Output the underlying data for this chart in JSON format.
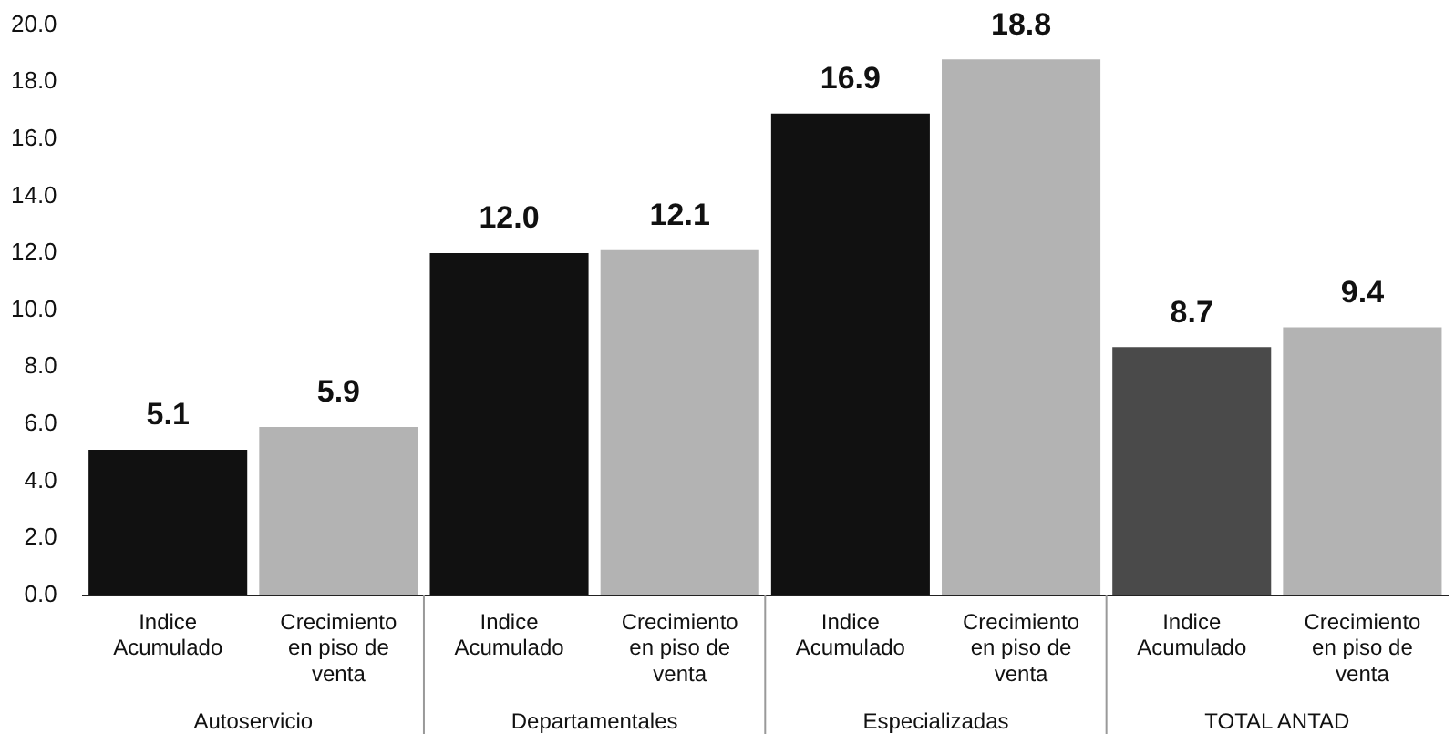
{
  "chart_data": {
    "type": "bar",
    "categories": [
      "Indice Acumulado",
      "Crecimiento en piso de venta",
      "Indice Acumulado",
      "Crecimiento en piso de venta",
      "Indice Acumulado",
      "Crecimiento en piso de venta",
      "Indice Acumulado",
      "Crecimiento en piso de venta"
    ],
    "values": [
      5.1,
      5.9,
      12.0,
      12.1,
      16.9,
      18.8,
      8.7,
      9.4
    ],
    "colors": [
      "#111111",
      "#b3b3b3",
      "#111111",
      "#b3b3b3",
      "#111111",
      "#b3b3b3",
      "#4a4a4a",
      "#b3b3b3"
    ],
    "value_labels": [
      "5.1",
      "5.9",
      "12.0",
      "12.1",
      "16.9",
      "18.8",
      "8.7",
      "9.4"
    ],
    "ylim": [
      0,
      20
    ],
    "yticks": [
      {
        "value": 0,
        "label": "0.0"
      },
      {
        "value": 2,
        "label": "2.0"
      },
      {
        "value": 4,
        "label": "4.0"
      },
      {
        "value": 6,
        "label": "6.0"
      },
      {
        "value": 8,
        "label": "8.0"
      },
      {
        "value": 10,
        "label": "10.0"
      },
      {
        "value": 12,
        "label": "12.0"
      },
      {
        "value": 14,
        "label": "14.0"
      },
      {
        "value": 16,
        "label": "16.0"
      },
      {
        "value": 18,
        "label": "18.0"
      },
      {
        "value": 20,
        "label": "20.0"
      }
    ],
    "grid": false,
    "legend": false,
    "annotations": [
      "Autoservicio",
      "Departamentales",
      "Especializadas",
      "TOTAL ANTAD"
    ]
  }
}
